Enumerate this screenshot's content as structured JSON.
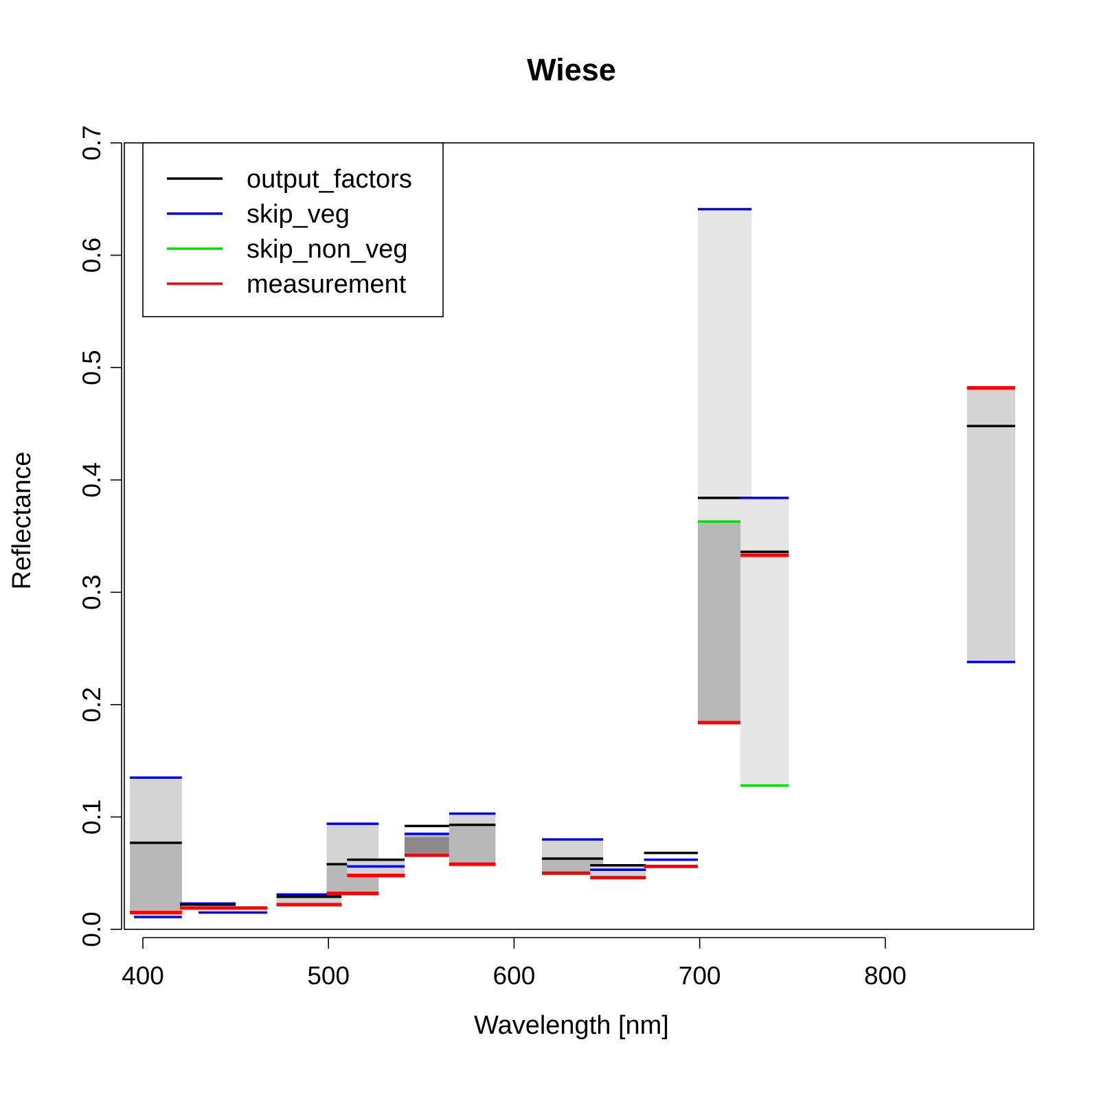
{
  "chart_data": {
    "type": "bar",
    "title": "Wiese",
    "xlabel": "Wavelength [nm]",
    "ylabel": "Reflectance",
    "xlim": [
      390,
      880
    ],
    "ylim": [
      0,
      0.7
    ],
    "xticks": [
      400,
      500,
      600,
      700,
      800
    ],
    "yticks": [
      0.0,
      0.1,
      0.2,
      0.3,
      0.4,
      0.5,
      0.6,
      0.7
    ],
    "xtick_labels": [
      "400",
      "500",
      "600",
      "700",
      "800"
    ],
    "ytick_labels": [
      "0.0",
      "0.1",
      "0.2",
      "0.3",
      "0.4",
      "0.5",
      "0.6",
      "0.7"
    ],
    "grid": false,
    "legend_position": "top-left",
    "legend": [
      {
        "label": "output_factors",
        "color": "#000000"
      },
      {
        "label": "skip_veg",
        "color": "#0000ff"
      },
      {
        "label": "skip_non_veg",
        "color": "#00e000"
      },
      {
        "label": "measurement",
        "color": "#ff0000"
      }
    ],
    "box_colors": {
      "outer": "#d4d4d4",
      "inner": "#b8b8b8",
      "wide_outer": "#e6e6e6"
    },
    "bands": [
      {
        "x0": 393,
        "x1": 421,
        "fill": [
          [
            0.015,
            0.135,
            "outer"
          ],
          [
            0.015,
            0.077,
            "inner"
          ]
        ],
        "lines": {
          "output_factors": 0.077,
          "skip_veg": 0.135,
          "measurement": 0.015
        },
        "skip_veg_extra": 0.011
      },
      {
        "x0": 420,
        "x1": 450,
        "fill": [],
        "lines": {
          "output_factors": 0.022,
          "skip_veg": 0.023,
          "measurement": 0.019
        }
      },
      {
        "x0": 430,
        "x1": 467,
        "fill": [],
        "lines": {
          "skip_veg": 0.015,
          "measurement": 0.019
        }
      },
      {
        "x0": 472,
        "x1": 507,
        "fill": [
          [
            0.022,
            0.031,
            "outer"
          ]
        ],
        "lines": {
          "output_factors": 0.029,
          "skip_veg": 0.031,
          "measurement": 0.022
        }
      },
      {
        "x0": 499,
        "x1": 527,
        "fill": [
          [
            0.032,
            0.094,
            "outer"
          ],
          [
            0.032,
            0.058,
            "inner"
          ]
        ],
        "lines": {
          "output_factors": 0.058,
          "skip_veg": 0.094,
          "measurement": 0.032
        }
      },
      {
        "x0": 510,
        "x1": 541,
        "fill": [
          [
            0.048,
            0.062,
            "outer"
          ]
        ],
        "lines": {
          "output_factors": 0.062,
          "skip_veg": 0.056,
          "measurement": 0.048
        }
      },
      {
        "x0": 541,
        "x1": 570,
        "fill": [
          [
            0.066,
            0.085,
            "outer"
          ],
          [
            0.066,
            0.085,
            "inner"
          ],
          [
            0.068,
            0.082,
            "dark"
          ]
        ],
        "lines": {
          "output_factors": 0.092,
          "skip_veg": 0.085,
          "measurement": 0.066
        }
      },
      {
        "x0": 565,
        "x1": 590,
        "fill": [
          [
            0.058,
            0.103,
            "outer"
          ],
          [
            0.058,
            0.093,
            "inner"
          ]
        ],
        "lines": {
          "output_factors": 0.093,
          "skip_veg": 0.103,
          "measurement": 0.058
        }
      },
      {
        "x0": 615,
        "x1": 648,
        "fill": [
          [
            0.05,
            0.08,
            "outer"
          ],
          [
            0.05,
            0.063,
            "inner"
          ]
        ],
        "lines": {
          "output_factors": 0.063,
          "skip_veg": 0.08,
          "measurement": 0.05
        }
      },
      {
        "x0": 641,
        "x1": 671,
        "fill": [
          [
            0.046,
            0.057,
            "outer"
          ]
        ],
        "lines": {
          "output_factors": 0.057,
          "skip_veg": 0.053,
          "measurement": 0.046
        }
      },
      {
        "x0": 670,
        "x1": 699,
        "fill": [],
        "lines": {
          "output_factors": 0.068,
          "skip_veg": 0.062,
          "measurement": 0.056
        }
      },
      {
        "x0": 699,
        "x1": 728,
        "fill": [
          [
            0.184,
            0.641,
            "wide_outer"
          ],
          [
            0.184,
            0.363,
            "inner"
          ]
        ],
        "lines": {
          "output_factors": 0.384,
          "skip_veg": 0.641,
          "skip_non_veg": 0.363,
          "measurement": 0.184
        }
      },
      {
        "x0": 722,
        "x1": 748,
        "fill": [
          [
            0.128,
            0.384,
            "wide_outer"
          ],
          [
            0.128,
            0.333,
            "wide_outer"
          ]
        ],
        "lines": {
          "output_factors": 0.336,
          "skip_veg": 0.384,
          "skip_non_veg": 0.128,
          "measurement": 0.333
        }
      },
      {
        "x0": 844,
        "x1": 870,
        "fill": [
          [
            0.238,
            0.482,
            "outer"
          ]
        ],
        "lines": {
          "output_factors": 0.448,
          "skip_veg": 0.238,
          "measurement": 0.482
        }
      }
    ]
  }
}
